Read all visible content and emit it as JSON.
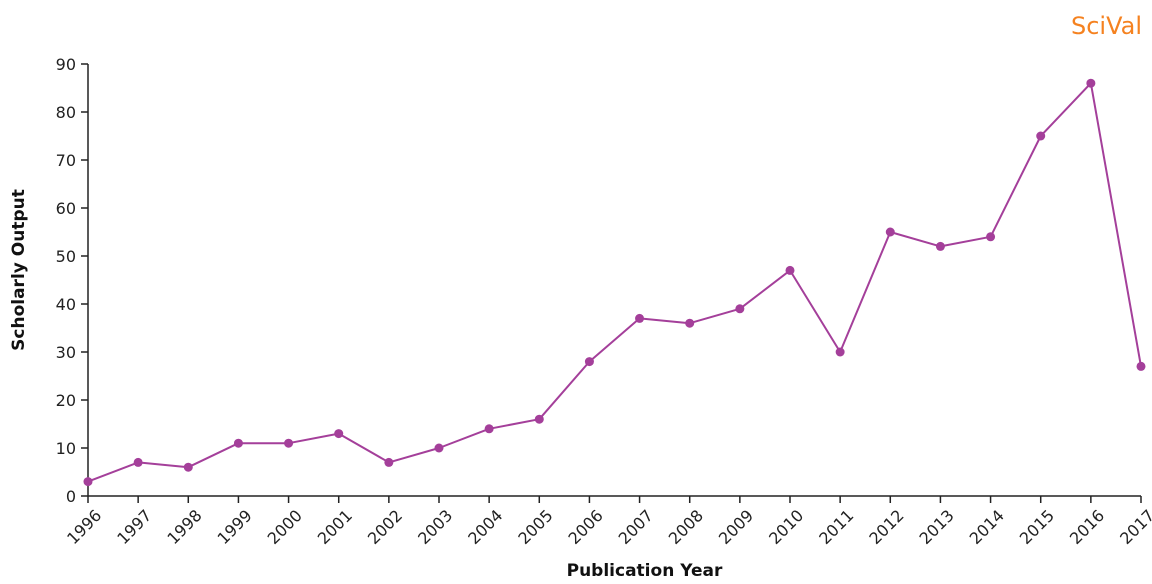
{
  "brand": {
    "logo_text": "SciVal",
    "color": "#f58220"
  },
  "chart_data": {
    "type": "line",
    "title": "",
    "xlabel": "Publication Year",
    "ylabel": "Scholarly Output",
    "x": [
      "1996",
      "1997",
      "1998",
      "1999",
      "2000",
      "2001",
      "2002",
      "2003",
      "2004",
      "2005",
      "2006",
      "2007",
      "2008",
      "2009",
      "2010",
      "2011",
      "2012",
      "2013",
      "2014",
      "2015",
      "2016",
      "2017"
    ],
    "series": [
      {
        "values": [
          3,
          7,
          6,
          11,
          11,
          13,
          7,
          10,
          14,
          16,
          28,
          37,
          36,
          39,
          47,
          30,
          55,
          52,
          54,
          75,
          86,
          27
        ],
        "color": "#a43f9a"
      }
    ],
    "ylim": [
      0,
      90
    ],
    "yticks": [
      0,
      10,
      20,
      30,
      40,
      50,
      60,
      70,
      80,
      90
    ],
    "grid": false,
    "legend": "none",
    "axis_color": "#222222"
  }
}
